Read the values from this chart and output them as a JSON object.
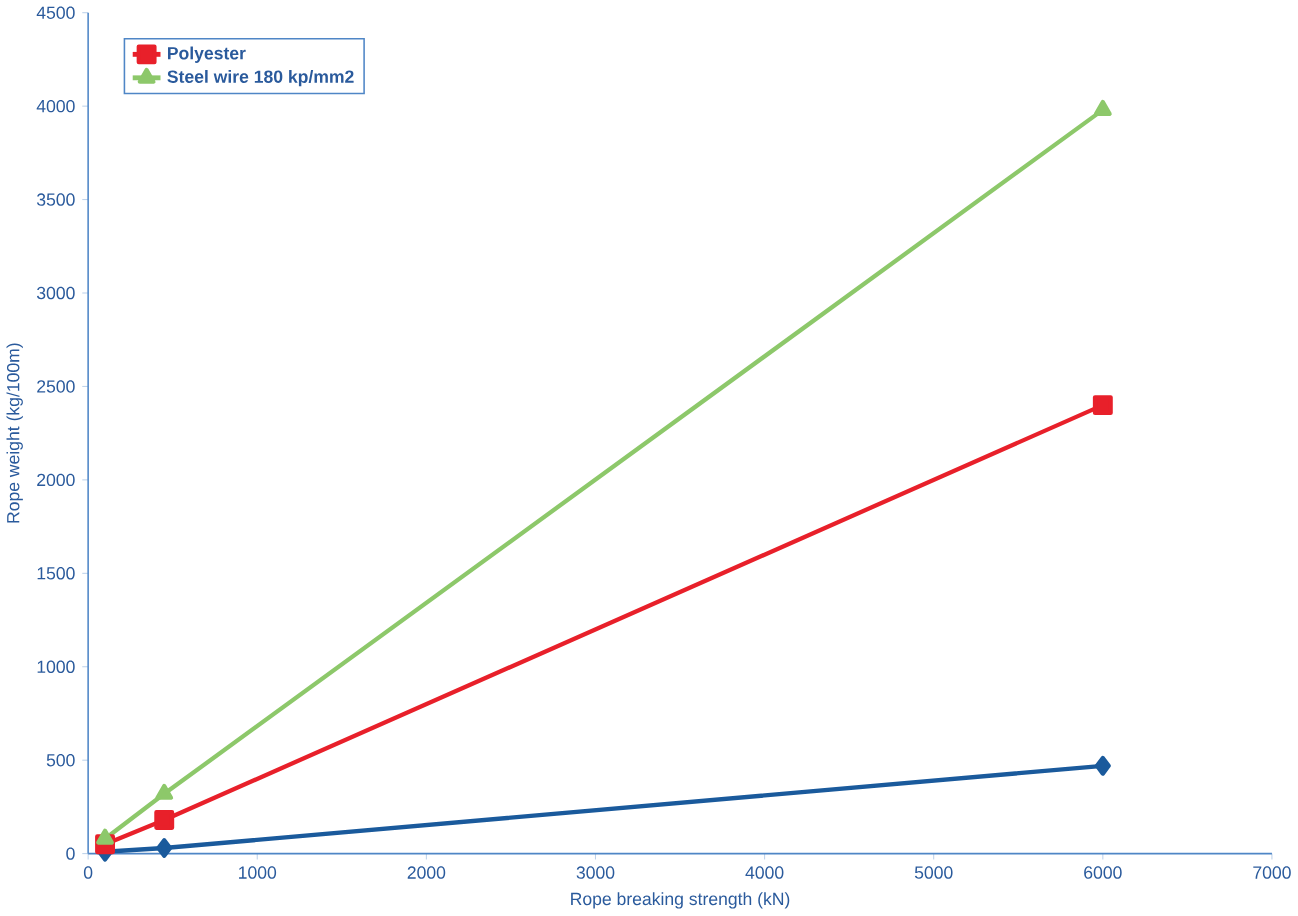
{
  "chart_data": {
    "type": "line",
    "xlabel": "Rope breaking strength (kN)",
    "ylabel": "Rope weight (kg/100m)",
    "xlim": [
      0,
      7000
    ],
    "xticks": [
      0,
      1000,
      2000,
      3000,
      4000,
      5000,
      6000,
      7000
    ],
    "ylim": [
      0,
      4500
    ],
    "yticks": [
      0,
      500,
      1000,
      1500,
      2000,
      2500,
      3000,
      3500,
      4000,
      4500
    ],
    "grid": false,
    "legend": "top left",
    "series": [
      {
        "color": "#1a5a9c",
        "marker": "diamond",
        "x": [
          100,
          450,
          6000
        ],
        "values": [
          10,
          30,
          470
        ]
      },
      {
        "name": "Polyester",
        "color": "#e8202a",
        "marker": "square",
        "x": [
          100,
          450,
          6000
        ],
        "values": [
          50,
          180,
          2400
        ]
      },
      {
        "name": "Steel wire 180 kp/mm2",
        "color": "#8dc86a",
        "marker": "triangle",
        "x": [
          100,
          450,
          6000
        ],
        "values": [
          80,
          320,
          3980
        ]
      }
    ]
  }
}
